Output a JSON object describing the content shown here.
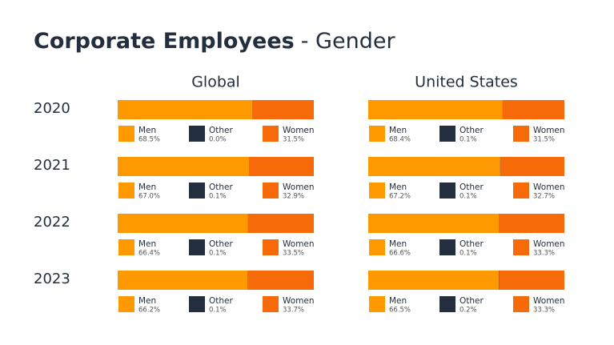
{
  "title": "Corporate Employees",
  "subtitle": "- Gender",
  "chart_data": [
    {
      "type": "bar",
      "title": "Global",
      "categories": [
        "2020",
        "2021",
        "2022",
        "2023"
      ],
      "series": [
        {
          "name": "Men",
          "color": "#ff9900",
          "values": [
            68.5,
            67.0,
            66.4,
            66.2
          ],
          "value_labels": [
            "68.5%",
            "67.0%",
            "66.4%",
            "66.2%"
          ]
        },
        {
          "name": "Other",
          "color": "#232f3e",
          "values": [
            0.0,
            0.1,
            0.1,
            0.1
          ],
          "value_labels": [
            "0.0%",
            "0.1%",
            "0.1%",
            "0.1%"
          ]
        },
        {
          "name": "Women",
          "color": "#f66a0a",
          "values": [
            31.5,
            32.9,
            33.5,
            33.7
          ],
          "value_labels": [
            "31.5%",
            "32.9%",
            "33.5%",
            "33.7%"
          ]
        }
      ]
    },
    {
      "type": "bar",
      "title": "United States",
      "series": [
        {
          "name": "Men",
          "color": "#ff9900",
          "values": [
            68.4,
            67.2,
            66.6,
            66.5
          ],
          "value_labels": [
            "68.4%",
            "67.2%",
            "66.6%",
            "66.5%"
          ]
        },
        {
          "name": "Other",
          "color": "#232f3e",
          "values": [
            0.1,
            0.1,
            0.1,
            0.2
          ],
          "value_labels": [
            "0.1%",
            "0.1%",
            "0.1%",
            "0.2%"
          ]
        },
        {
          "name": "Women",
          "color": "#f66a0a",
          "values": [
            31.5,
            32.7,
            33.3,
            33.3
          ],
          "value_labels": [
            "31.5%",
            "32.7%",
            "33.3%",
            "33.3%"
          ]
        }
      ]
    }
  ]
}
